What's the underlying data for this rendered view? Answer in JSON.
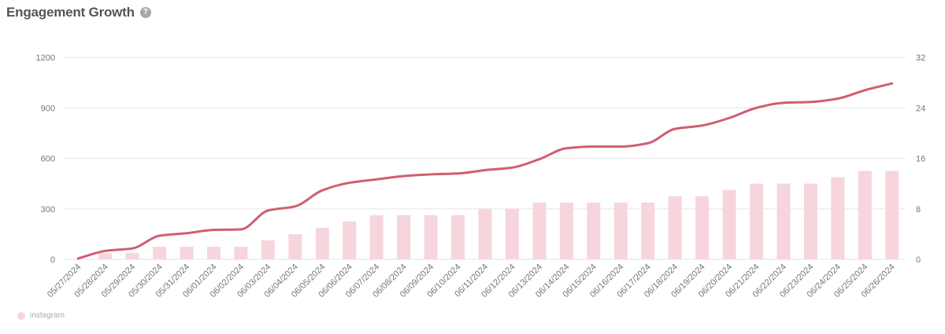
{
  "header": {
    "title": "Engagement Growth",
    "help_icon": "?"
  },
  "colors": {
    "bar": "#f7d5dc",
    "line": "#d05e72",
    "grid": "#e6e6e6",
    "axis_text": "#777777"
  },
  "chart_data": {
    "type": "bar+line",
    "categories": [
      "05/27/2024",
      "05/28/2024",
      "05/29/2024",
      "05/30/2024",
      "05/31/2024",
      "06/01/2024",
      "06/02/2024",
      "06/03/2024",
      "06/04/2024",
      "06/05/2024",
      "06/06/2024",
      "06/07/2024",
      "06/08/2024",
      "06/09/2024",
      "06/10/2024",
      "06/11/2024",
      "06/12/2024",
      "06/13/2024",
      "06/14/2024",
      "06/15/2024",
      "06/16/2024",
      "06/17/2024",
      "06/18/2024",
      "06/19/2024",
      "06/20/2024",
      "06/21/2024",
      "06/22/2024",
      "06/23/2024",
      "06/24/2024",
      "06/25/2024",
      "06/26/2024"
    ],
    "left_axis": {
      "ticks": [
        0,
        300,
        600,
        900,
        1200
      ],
      "range": [
        0,
        1200
      ]
    },
    "right_axis": {
      "ticks": [
        0,
        8,
        16,
        24,
        32
      ],
      "range": [
        0,
        32
      ]
    },
    "series": [
      {
        "name": "instagram",
        "type": "bar",
        "axis": "right",
        "values": [
          0,
          1,
          1,
          2,
          2,
          2,
          2,
          3,
          4,
          5,
          6,
          7,
          7,
          7,
          7,
          8,
          8,
          9,
          9,
          9,
          9,
          9,
          10,
          10,
          11,
          12,
          12,
          12,
          13,
          14,
          14
        ]
      },
      {
        "type": "line",
        "axis": "left",
        "values": [
          5,
          50,
          65,
          140,
          155,
          175,
          178,
          290,
          315,
          410,
          455,
          475,
          495,
          505,
          510,
          530,
          545,
          595,
          660,
          670,
          670,
          690,
          775,
          795,
          840,
          900,
          930,
          935,
          955,
          1005,
          1045
        ]
      }
    ],
    "grid": true,
    "legend": {
      "position": "bottom-left",
      "entries": [
        "instagram"
      ]
    }
  }
}
